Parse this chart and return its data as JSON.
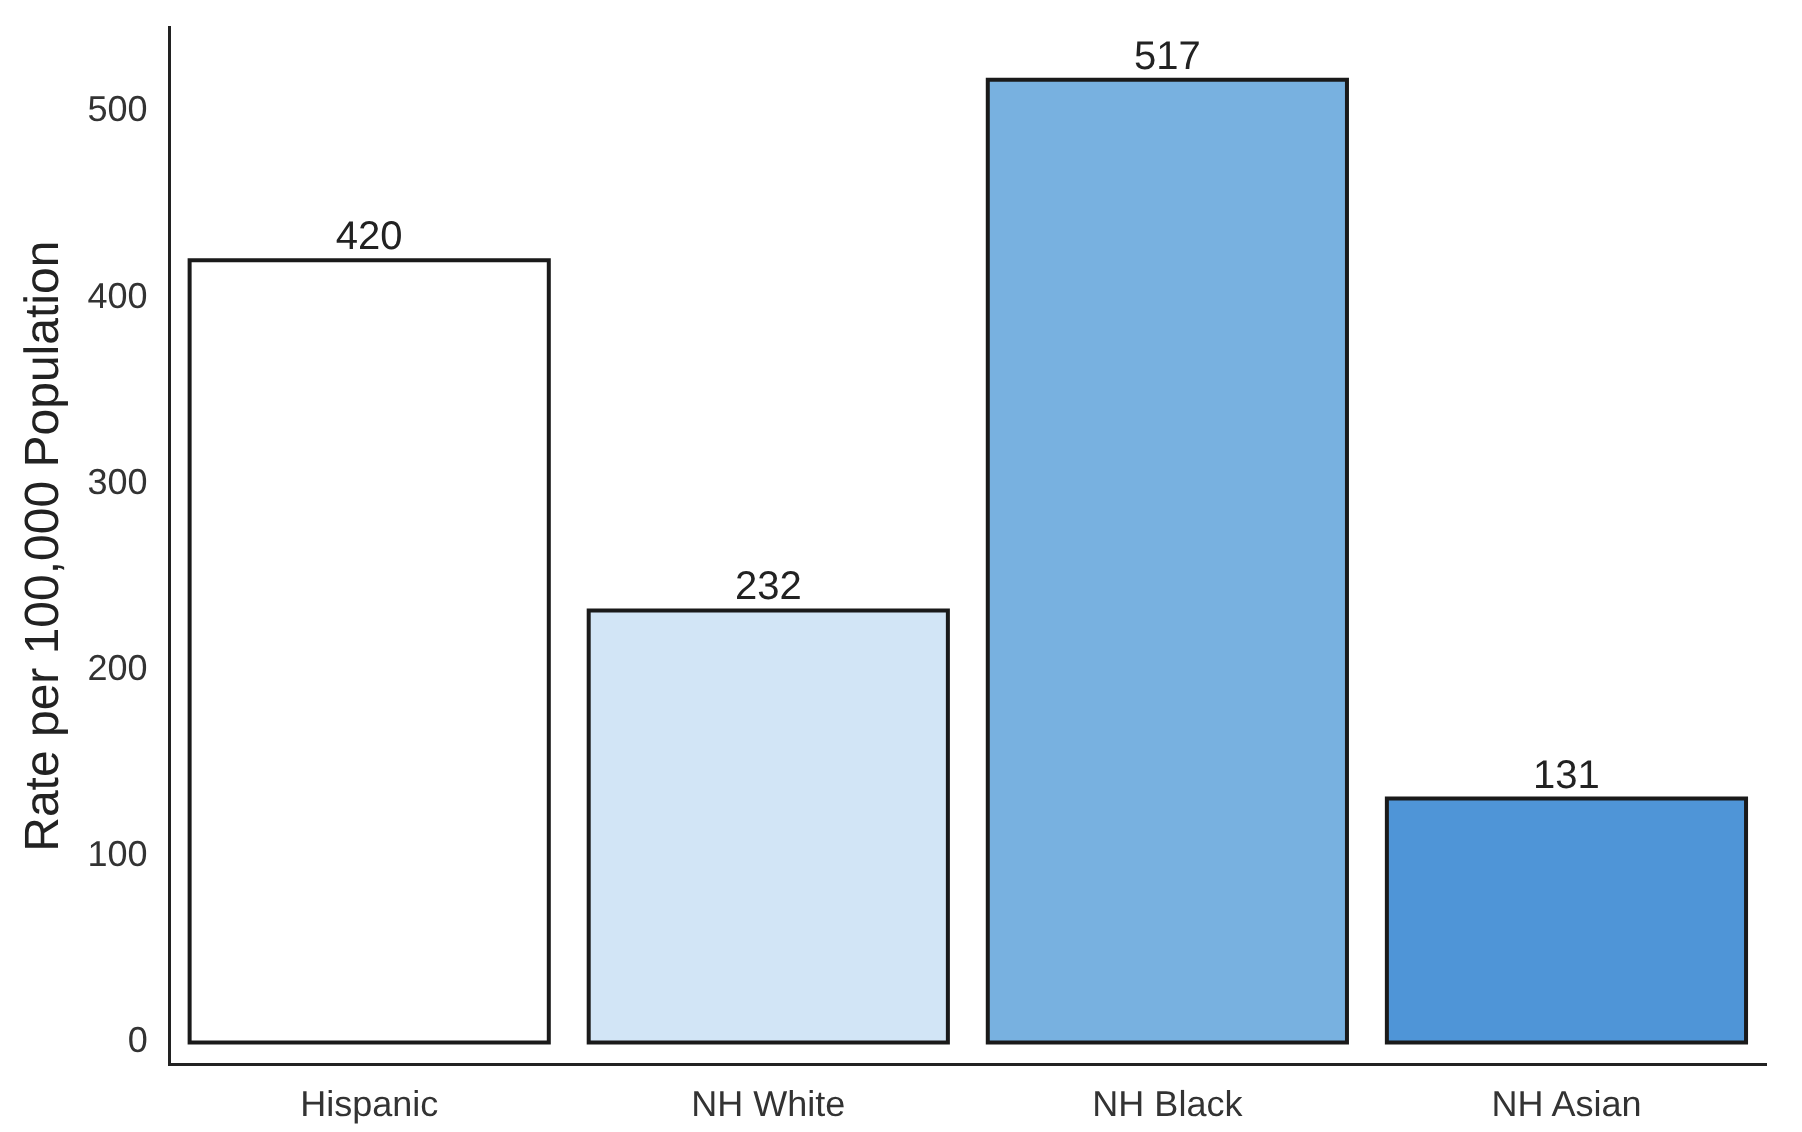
{
  "chart_data": {
    "type": "bar",
    "ylabel": "Rate per 100,000 Population",
    "categories": [
      "Hispanic",
      "NH White",
      "NH Black",
      "NH Asian"
    ],
    "values": [
      420,
      232,
      517,
      131
    ],
    "colors": [
      "#ffffff",
      "#d2e5f6",
      "#78b1e0",
      "#4f95d7"
    ],
    "ylim": [
      -12,
      545
    ],
    "yticks": [
      0,
      100,
      200,
      300,
      400,
      500
    ],
    "grid": false,
    "legend": false,
    "data_labels": true
  }
}
